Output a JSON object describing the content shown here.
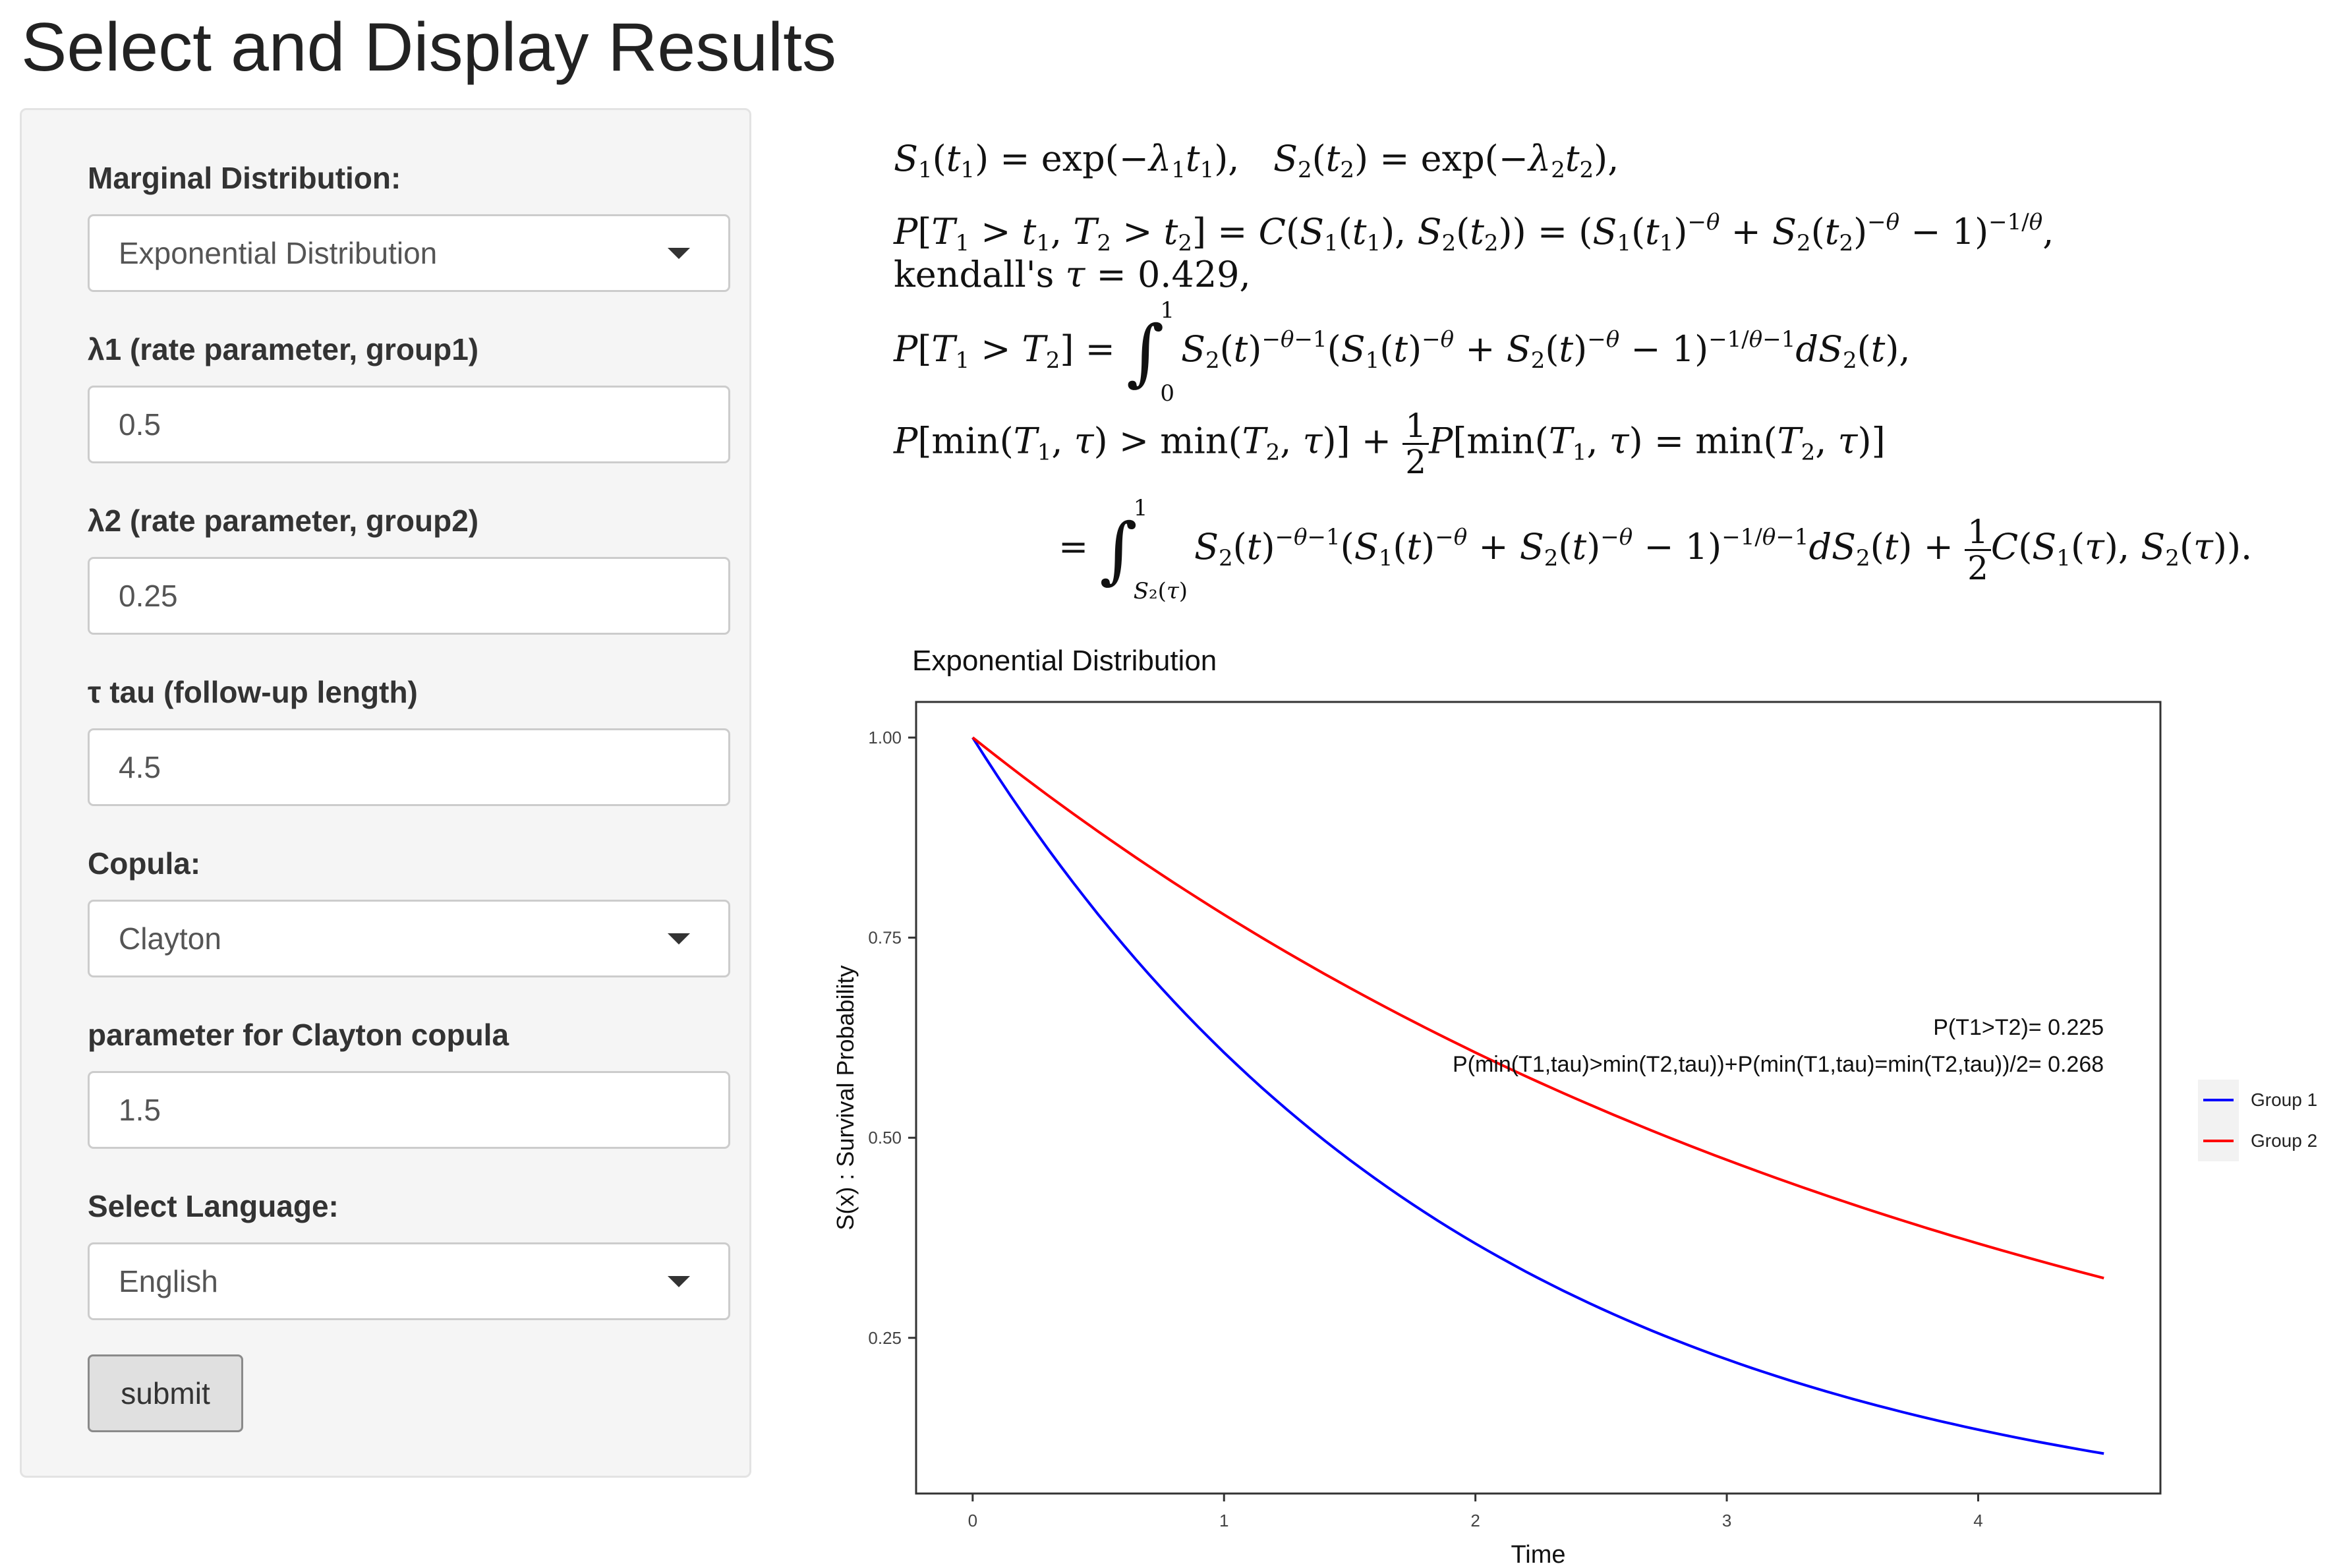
{
  "page": {
    "title": "Select and Display Results"
  },
  "sidebar": {
    "marginal_label": "Marginal Distribution:",
    "marginal_value": "Exponential Distribution",
    "lambda1_label": "λ1 (rate parameter, group1)",
    "lambda1_value": "0.5",
    "lambda2_label": "λ2 (rate parameter, group2)",
    "lambda2_value": "0.25",
    "tau_label": "τ tau (follow-up length)",
    "tau_value": "4.5",
    "copula_label": "Copula:",
    "copula_value": "Clayton",
    "param_label": "parameter for Clayton copula",
    "param_value": "1.5",
    "language_label": "Select Language:",
    "language_value": "English",
    "submit_label": "submit"
  },
  "icons": {
    "dropdown": "chevron-down-icon"
  },
  "formulas": {
    "kendall_label": "kendall's ",
    "kendall_value": "0.429"
  },
  "chart_data": {
    "type": "line",
    "title": "Exponential Distribution",
    "xlabel": "Time",
    "ylabel": "S(x) : Survival Probability",
    "xlim": [
      -0.225,
      4.725
    ],
    "ylim": [
      0.0555,
      1.0445
    ],
    "x_ticks": [
      0,
      1,
      2,
      3,
      4
    ],
    "x_tick_labels": [
      "0",
      "1",
      "2",
      "3",
      "4"
    ],
    "y_ticks": [
      0.25,
      0.5,
      0.75,
      1.0
    ],
    "y_tick_labels": [
      "0.25",
      "0.50",
      "0.75",
      "1.00"
    ],
    "grid": false,
    "legend_position": "right",
    "series": [
      {
        "name": "Group 1",
        "color": "#0000ff",
        "function": "exp(-0.5*t)",
        "x_range": [
          0,
          4.5
        ]
      },
      {
        "name": "Group 2",
        "color": "#ff0000",
        "function": "exp(-0.25*t)",
        "x_range": [
          0,
          4.5
        ]
      }
    ],
    "annotations": [
      "P(T1>T2)= 0.225",
      "P(min(T1,tau)>min(T2,tau))+P(min(T1,tau)=min(T2,tau))/2= 0.268"
    ]
  }
}
